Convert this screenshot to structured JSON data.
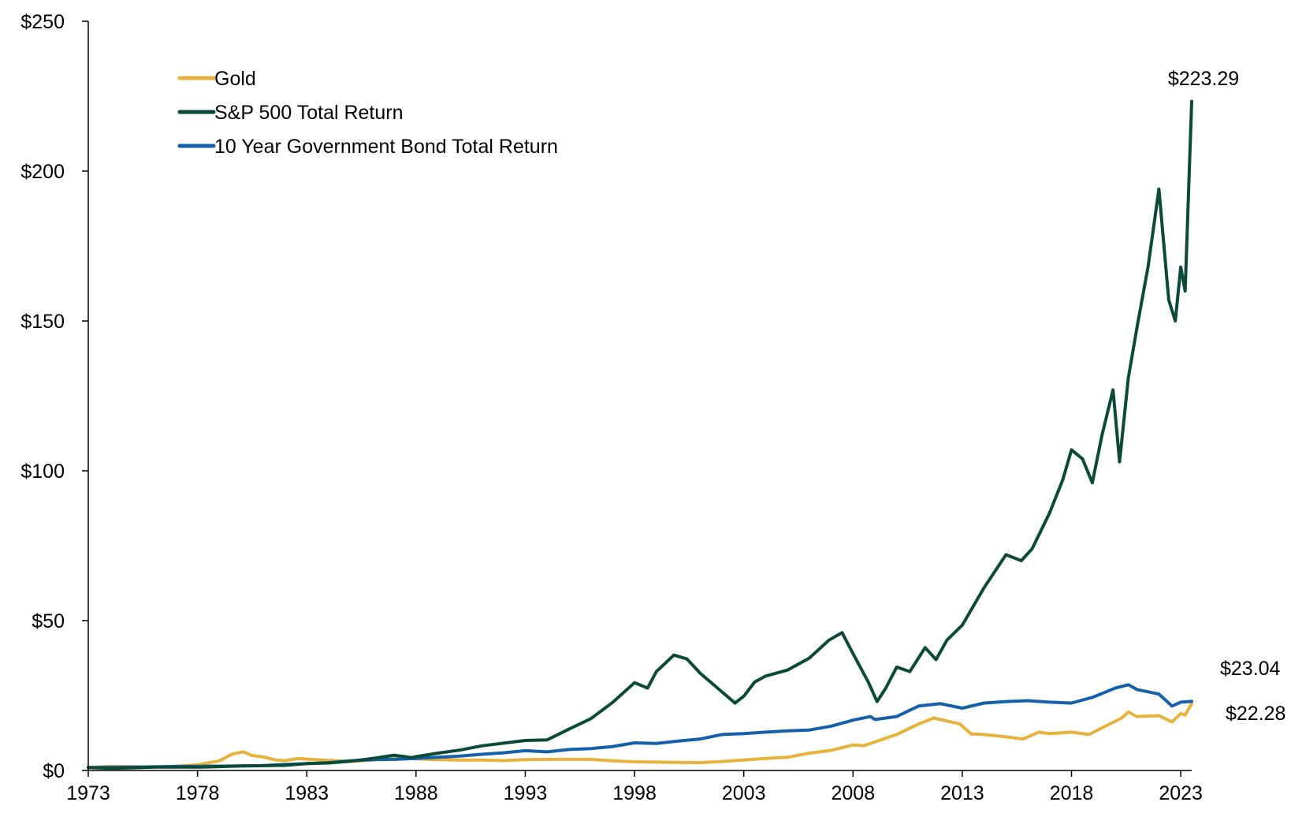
{
  "chart_data": {
    "type": "line",
    "title": "",
    "xlabel": "",
    "ylabel": "",
    "xlim": [
      1973,
      2023.5
    ],
    "ylim": [
      0,
      250
    ],
    "y_ticks": [
      0,
      50,
      100,
      150,
      200,
      250
    ],
    "y_tick_labels": [
      "$0",
      "$50",
      "$100",
      "$150",
      "$200",
      "$250"
    ],
    "x_ticks": [
      1973,
      1978,
      1983,
      1988,
      1993,
      1998,
      2003,
      2008,
      2013,
      2018,
      2023
    ],
    "x_tick_labels": [
      "1973",
      "1978",
      "1983",
      "1988",
      "1993",
      "1998",
      "2003",
      "2008",
      "2013",
      "2018",
      "2023"
    ],
    "grid": false,
    "legend": {
      "placement": "top-left"
    },
    "series": [
      {
        "name": "Gold",
        "color": "#E8B33C",
        "end_label": "$22.28",
        "points": [
          [
            1973,
            1.0
          ],
          [
            1974,
            1.4
          ],
          [
            1975,
            1.3
          ],
          [
            1976,
            1.1
          ],
          [
            1977,
            1.4
          ],
          [
            1978,
            1.9
          ],
          [
            1979,
            3.2
          ],
          [
            1979.6,
            5.5
          ],
          [
            1980.1,
            6.2
          ],
          [
            1980.5,
            5.0
          ],
          [
            1981,
            4.5
          ],
          [
            1981.6,
            3.5
          ],
          [
            1982,
            3.3
          ],
          [
            1982.6,
            4.0
          ],
          [
            1983,
            3.8
          ],
          [
            1984,
            3.4
          ],
          [
            1985,
            3.0
          ],
          [
            1986,
            3.5
          ],
          [
            1987,
            4.2
          ],
          [
            1988,
            3.9
          ],
          [
            1989,
            3.6
          ],
          [
            1990,
            3.5
          ],
          [
            1991,
            3.5
          ],
          [
            1992,
            3.3
          ],
          [
            1993,
            3.6
          ],
          [
            1994,
            3.7
          ],
          [
            1995,
            3.7
          ],
          [
            1996,
            3.7
          ],
          [
            1997,
            3.2
          ],
          [
            1998,
            2.9
          ],
          [
            1999,
            2.8
          ],
          [
            2000,
            2.7
          ],
          [
            2001,
            2.6
          ],
          [
            2002,
            3.0
          ],
          [
            2003,
            3.5
          ],
          [
            2004,
            4.0
          ],
          [
            2005,
            4.4
          ],
          [
            2006,
            5.8
          ],
          [
            2007,
            6.7
          ],
          [
            2008,
            8.5
          ],
          [
            2008.5,
            8.3
          ],
          [
            2009,
            9.5
          ],
          [
            2010,
            12.0
          ],
          [
            2011,
            15.5
          ],
          [
            2011.7,
            17.5
          ],
          [
            2012.3,
            16.5
          ],
          [
            2012.9,
            15.5
          ],
          [
            2013.4,
            12.2
          ],
          [
            2014,
            12.0
          ],
          [
            2015,
            11.2
          ],
          [
            2015.8,
            10.5
          ],
          [
            2016.5,
            12.8
          ],
          [
            2017,
            12.3
          ],
          [
            2018,
            12.8
          ],
          [
            2018.8,
            12.0
          ],
          [
            2019.5,
            14.6
          ],
          [
            2020.3,
            17.5
          ],
          [
            2020.6,
            19.5
          ],
          [
            2021,
            18.0
          ],
          [
            2022,
            18.3
          ],
          [
            2022.6,
            16.2
          ],
          [
            2023,
            19.0
          ],
          [
            2023.2,
            18.5
          ],
          [
            2023.5,
            22.28
          ]
        ]
      },
      {
        "name": "S&P 500 Total Return",
        "color": "#0B4A38",
        "end_label": "$223.29",
        "points": [
          [
            1973,
            1.0
          ],
          [
            1974,
            0.7
          ],
          [
            1975,
            0.9
          ],
          [
            1976,
            1.1
          ],
          [
            1977,
            1.1
          ],
          [
            1978,
            1.1
          ],
          [
            1979,
            1.3
          ],
          [
            1980,
            1.5
          ],
          [
            1981,
            1.6
          ],
          [
            1982,
            1.7
          ],
          [
            1983,
            2.3
          ],
          [
            1984,
            2.5
          ],
          [
            1985,
            3.1
          ],
          [
            1986,
            4.0
          ],
          [
            1987,
            5.1
          ],
          [
            1987.8,
            4.3
          ],
          [
            1988,
            4.6
          ],
          [
            1989,
            5.8
          ],
          [
            1990,
            6.8
          ],
          [
            1991,
            8.2
          ],
          [
            1992,
            9.1
          ],
          [
            1993,
            10.0
          ],
          [
            1994,
            10.2
          ],
          [
            1995,
            13.8
          ],
          [
            1996,
            17.3
          ],
          [
            1997,
            22.7
          ],
          [
            1998,
            29.3
          ],
          [
            1998.6,
            27.5
          ],
          [
            1999,
            33.0
          ],
          [
            1999.8,
            38.5
          ],
          [
            2000.4,
            37.2
          ],
          [
            2001,
            32.5
          ],
          [
            2001.8,
            27.5
          ],
          [
            2002.6,
            22.5
          ],
          [
            2003,
            24.8
          ],
          [
            2003.5,
            29.5
          ],
          [
            2004,
            31.5
          ],
          [
            2005,
            33.5
          ],
          [
            2006,
            37.5
          ],
          [
            2006.9,
            43.5
          ],
          [
            2007.5,
            46.0
          ],
          [
            2008,
            39.0
          ],
          [
            2008.7,
            29.5
          ],
          [
            2009.1,
            23.0
          ],
          [
            2009.5,
            27.5
          ],
          [
            2010,
            34.5
          ],
          [
            2010.6,
            33.0
          ],
          [
            2011.3,
            41.0
          ],
          [
            2011.8,
            37.0
          ],
          [
            2012.3,
            43.5
          ],
          [
            2013,
            48.5
          ],
          [
            2014,
            61.0
          ],
          [
            2015,
            72.0
          ],
          [
            2015.7,
            70.0
          ],
          [
            2016.2,
            74.0
          ],
          [
            2017,
            86.0
          ],
          [
            2017.6,
            97.0
          ],
          [
            2018,
            107.0
          ],
          [
            2018.5,
            104.0
          ],
          [
            2018.95,
            96.0
          ],
          [
            2019.4,
            112.0
          ],
          [
            2019.9,
            127.0
          ],
          [
            2020.2,
            103.0
          ],
          [
            2020.6,
            131.0
          ],
          [
            2021,
            148.0
          ],
          [
            2021.5,
            168.0
          ],
          [
            2022,
            194.0
          ],
          [
            2022.45,
            157.0
          ],
          [
            2022.75,
            150.0
          ],
          [
            2023,
            168.0
          ],
          [
            2023.2,
            160.0
          ],
          [
            2023.5,
            223.29
          ]
        ]
      },
      {
        "name": "10 Year Government Bond Total Return",
        "color": "#1560AA",
        "end_label": "$23.04",
        "points": [
          [
            1973,
            1.0
          ],
          [
            1974,
            1.05
          ],
          [
            1975,
            1.1
          ],
          [
            1976,
            1.2
          ],
          [
            1977,
            1.35
          ],
          [
            1978,
            1.4
          ],
          [
            1979,
            1.45
          ],
          [
            1980,
            1.5
          ],
          [
            1981,
            1.6
          ],
          [
            1982,
            2.0
          ],
          [
            1983,
            2.3
          ],
          [
            1984,
            2.6
          ],
          [
            1985,
            3.2
          ],
          [
            1986,
            3.6
          ],
          [
            1987,
            3.7
          ],
          [
            1988,
            4.0
          ],
          [
            1989,
            4.4
          ],
          [
            1990,
            4.8
          ],
          [
            1991,
            5.4
          ],
          [
            1992,
            5.9
          ],
          [
            1993,
            6.6
          ],
          [
            1994,
            6.2
          ],
          [
            1995,
            7.0
          ],
          [
            1996,
            7.3
          ],
          [
            1997,
            8.0
          ],
          [
            1998,
            9.2
          ],
          [
            1999,
            9.0
          ],
          [
            2000,
            9.8
          ],
          [
            2001,
            10.5
          ],
          [
            2002,
            12.0
          ],
          [
            2003,
            12.3
          ],
          [
            2004,
            12.8
          ],
          [
            2005,
            13.2
          ],
          [
            2006,
            13.5
          ],
          [
            2007,
            14.8
          ],
          [
            2008,
            16.8
          ],
          [
            2008.8,
            18.0
          ],
          [
            2009,
            17.0
          ],
          [
            2010,
            18.0
          ],
          [
            2011,
            21.5
          ],
          [
            2012,
            22.3
          ],
          [
            2013,
            20.8
          ],
          [
            2014,
            22.5
          ],
          [
            2015,
            23.0
          ],
          [
            2016,
            23.3
          ],
          [
            2017,
            22.8
          ],
          [
            2018,
            22.5
          ],
          [
            2019,
            24.5
          ],
          [
            2020,
            27.5
          ],
          [
            2020.6,
            28.6
          ],
          [
            2021,
            27.0
          ],
          [
            2022,
            25.5
          ],
          [
            2022.6,
            21.5
          ],
          [
            2023,
            22.8
          ],
          [
            2023.5,
            23.04
          ]
        ]
      }
    ]
  }
}
